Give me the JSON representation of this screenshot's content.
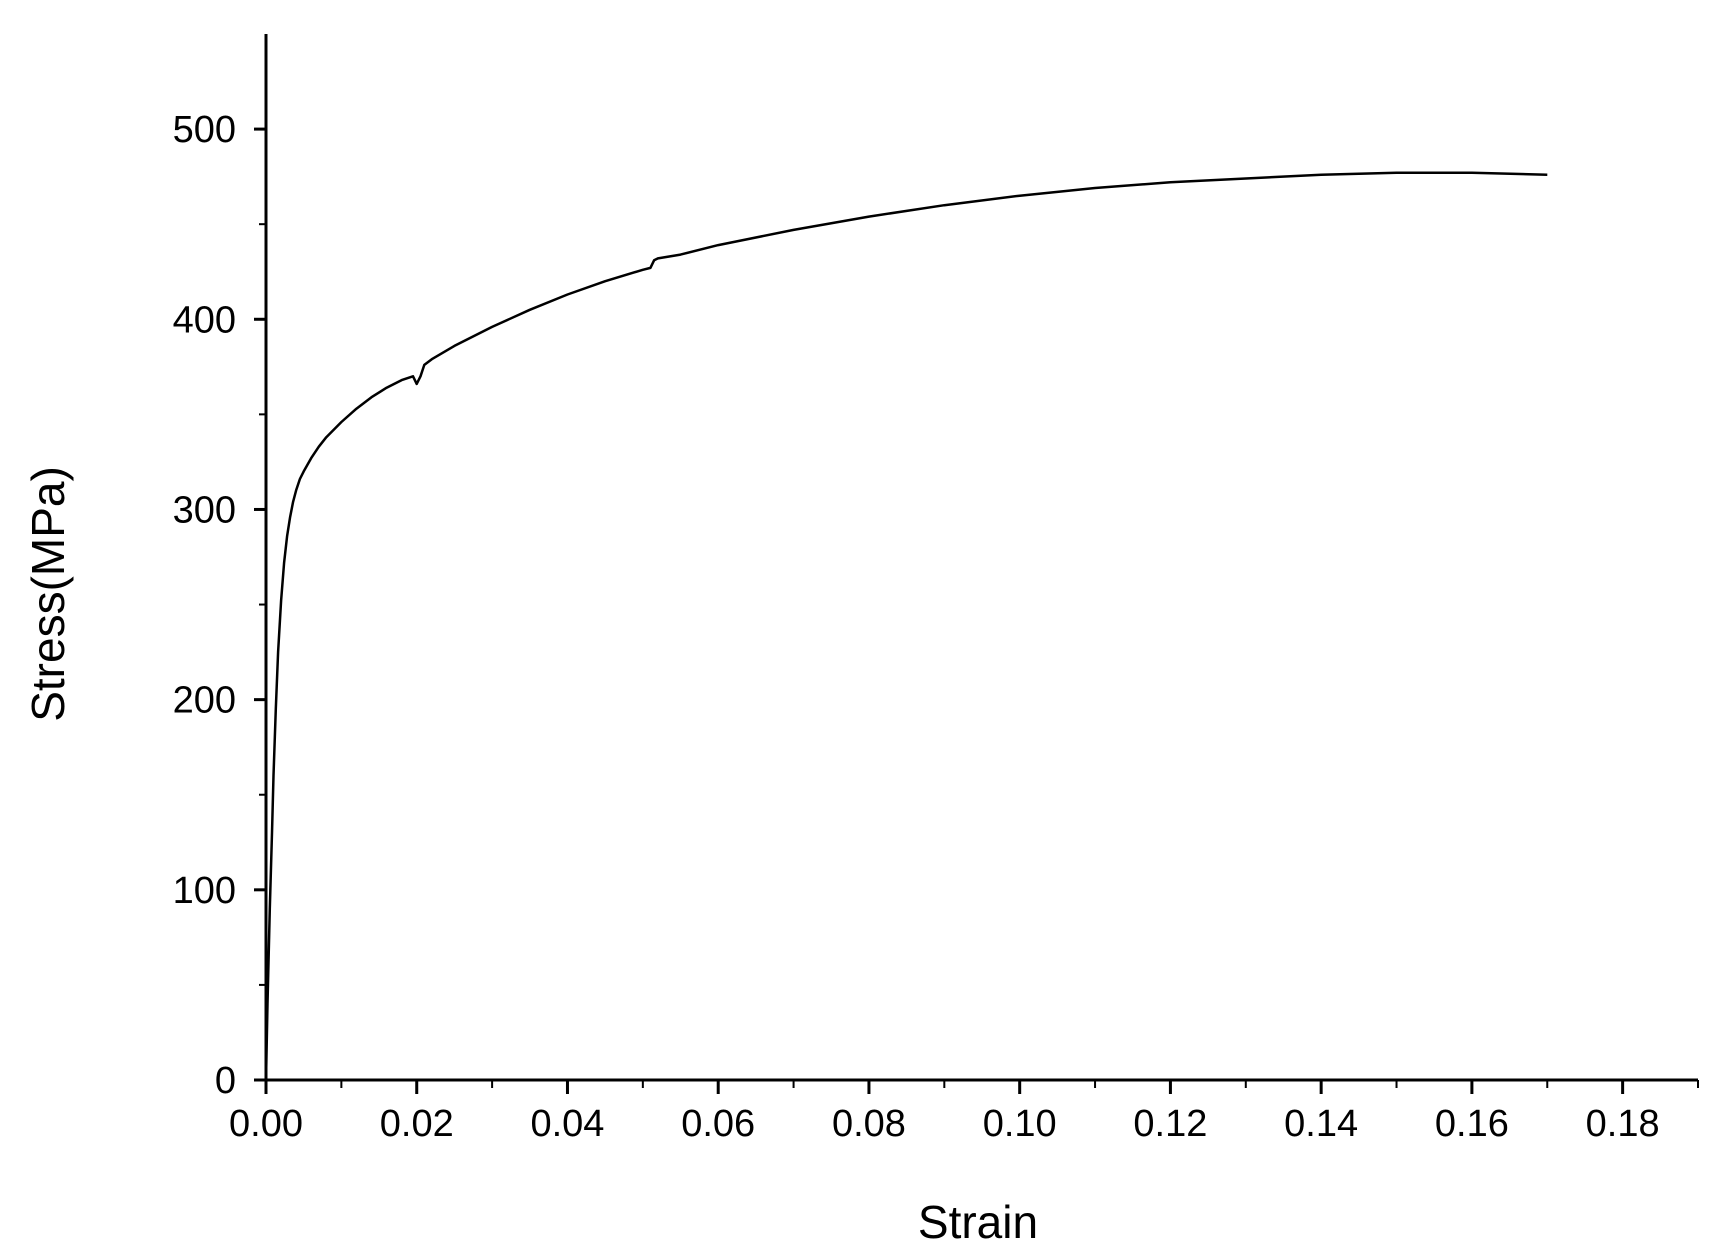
{
  "chart_data": {
    "type": "line",
    "title": "",
    "xlabel": "Strain",
    "ylabel": "Stress(MPa)",
    "xlim": [
      0,
      0.19
    ],
    "ylim": [
      0,
      550
    ],
    "x_ticks": [
      0.0,
      0.02,
      0.04,
      0.06,
      0.08,
      0.1,
      0.12,
      0.14,
      0.16,
      0.18
    ],
    "x_tick_labels": [
      "0.00",
      "0.02",
      "0.04",
      "0.06",
      "0.08",
      "0.10",
      "0.12",
      "0.14",
      "0.16",
      "0.18"
    ],
    "y_ticks": [
      0,
      100,
      200,
      300,
      400,
      500
    ],
    "y_tick_labels": [
      "0",
      "100",
      "200",
      "300",
      "400",
      "500"
    ],
    "grid": false,
    "legend": "none",
    "line_color": "#000000",
    "series": [
      {
        "x": [
          0.0,
          0.0002,
          0.0005,
          0.0008,
          0.001,
          0.0013,
          0.0016,
          0.002,
          0.0024,
          0.0028,
          0.0032,
          0.0036,
          0.004,
          0.0045,
          0.005,
          0.006,
          0.007,
          0.008,
          0.01,
          0.012,
          0.014,
          0.016,
          0.018,
          0.0195,
          0.02,
          0.0205,
          0.021,
          0.022,
          0.025,
          0.03,
          0.035,
          0.04,
          0.045,
          0.05,
          0.051,
          0.0515,
          0.052,
          0.055,
          0.06,
          0.07,
          0.08,
          0.09,
          0.1,
          0.11,
          0.12,
          0.13,
          0.14,
          0.15,
          0.16,
          0.17
        ],
        "y": [
          0,
          40,
          90,
          130,
          160,
          195,
          225,
          252,
          272,
          286,
          296,
          304,
          310,
          316,
          320,
          327,
          333,
          338,
          346,
          353,
          359,
          364,
          368,
          370,
          366,
          370,
          376,
          379,
          386,
          396,
          405,
          413,
          420,
          426,
          427,
          431,
          432,
          434,
          439,
          447,
          454,
          460,
          465,
          469,
          472,
          474,
          476,
          477,
          477,
          476
        ]
      }
    ]
  }
}
